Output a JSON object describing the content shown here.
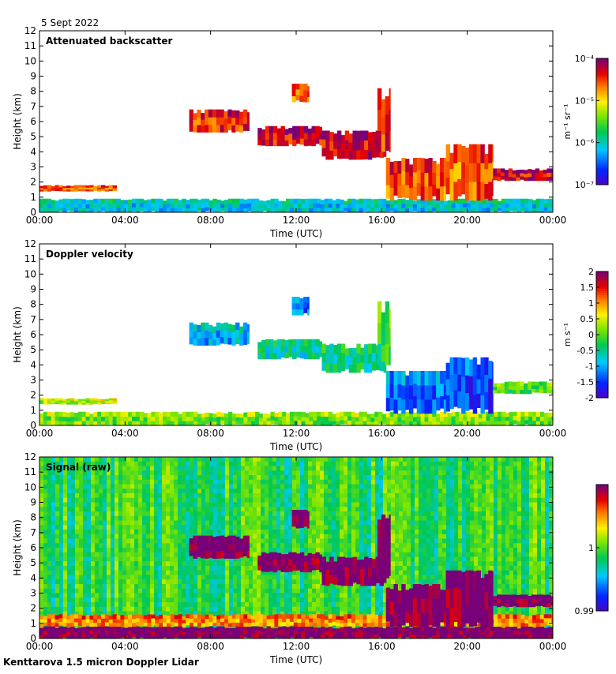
{
  "date_label": "5 Sept 2022",
  "footer_label": "Kenttarova 1.5 micron Doppler Lidar",
  "chart_data": [
    {
      "type": "heatmap",
      "title": "Attenuated backscatter",
      "xlabel": "Time (UTC)",
      "ylabel": "Height (km)",
      "xlim": [
        0,
        24
      ],
      "ylim": [
        0,
        12
      ],
      "x_tick_labels": [
        "00:00",
        "04:00",
        "08:00",
        "12:00",
        "16:00",
        "20:00",
        "00:00"
      ],
      "y_tick_labels": [
        "0",
        "1",
        "2",
        "3",
        "4",
        "5",
        "6",
        "7",
        "8",
        "9",
        "10",
        "11",
        "12"
      ],
      "colorbar": {
        "scale": "log",
        "range": [
          1e-07,
          0.0001
        ],
        "tick_labels": [
          "10⁻⁷",
          "10⁻⁶",
          "10⁻⁵",
          "10⁻⁴"
        ],
        "unit_label": "m⁻¹ sr⁻¹"
      },
      "features": [
        {
          "name": "boundary layer aerosol",
          "t_start": 0,
          "t_end": 24,
          "h_bottom": 0,
          "h_top": 0.9,
          "level": 0.3
        },
        {
          "name": "low cloud",
          "t_start": 0,
          "t_end": 3.6,
          "h_bottom": 1.4,
          "h_top": 1.8,
          "level": 0.8
        },
        {
          "name": "mid cloud",
          "t_start": 7.0,
          "t_end": 9.8,
          "h_bottom": 5.3,
          "h_top": 6.8,
          "level": 0.85
        },
        {
          "name": "mid cloud",
          "t_start": 10.2,
          "t_end": 13.2,
          "h_bottom": 4.4,
          "h_top": 5.7,
          "level": 0.9
        },
        {
          "name": "mid cloud",
          "t_start": 13.2,
          "t_end": 16.2,
          "h_bottom": 3.5,
          "h_top": 5.4,
          "level": 0.9
        },
        {
          "name": "high cloud",
          "t_start": 11.8,
          "t_end": 12.6,
          "h_bottom": 7.3,
          "h_top": 8.5,
          "level": 0.8
        },
        {
          "name": "cloud tower",
          "t_start": 15.8,
          "t_end": 16.4,
          "h_bottom": 4.0,
          "h_top": 8.2,
          "level": 0.85
        },
        {
          "name": "descending cloud",
          "t_start": 16.2,
          "t_end": 19.0,
          "h_bottom": 0.8,
          "h_top": 3.6,
          "level": 0.8
        },
        {
          "name": "cloud",
          "t_start": 19.0,
          "t_end": 21.2,
          "h_bottom": 0.8,
          "h_top": 4.5,
          "level": 0.8
        },
        {
          "name": "low cloud",
          "t_start": 21.2,
          "t_end": 24,
          "h_bottom": 2.1,
          "h_top": 2.9,
          "level": 0.9
        }
      ]
    },
    {
      "type": "heatmap",
      "title": "Doppler velocity",
      "xlabel": "Time (UTC)",
      "ylabel": "Height (km)",
      "xlim": [
        0,
        24
      ],
      "ylim": [
        0,
        12
      ],
      "x_tick_labels": [
        "00:00",
        "04:00",
        "08:00",
        "12:00",
        "16:00",
        "20:00",
        "00:00"
      ],
      "y_tick_labels": [
        "0",
        "1",
        "2",
        "3",
        "4",
        "5",
        "6",
        "7",
        "8",
        "9",
        "10",
        "11",
        "12"
      ],
      "colorbar": {
        "scale": "linear",
        "range": [
          -2,
          2
        ],
        "tick_labels": [
          "-2",
          "-1.5",
          "-1",
          "-0.5",
          "0",
          "0.5",
          "1",
          "1.5",
          "2"
        ],
        "unit_label": "m s⁻¹"
      },
      "features": [
        {
          "name": "boundary layer",
          "t_start": 0,
          "t_end": 24,
          "h_bottom": 0,
          "h_top": 0.9,
          "value": 0.1
        },
        {
          "name": "low cloud",
          "t_start": 0,
          "t_end": 3.6,
          "h_bottom": 1.4,
          "h_top": 1.8,
          "value": 0.3
        },
        {
          "name": "mid cloud",
          "t_start": 7.0,
          "t_end": 9.8,
          "h_bottom": 5.3,
          "h_top": 6.8,
          "value": -1.0
        },
        {
          "name": "mid cloud",
          "t_start": 10.2,
          "t_end": 13.2,
          "h_bottom": 4.4,
          "h_top": 5.7,
          "value": -0.6
        },
        {
          "name": "mid cloud",
          "t_start": 13.2,
          "t_end": 16.2,
          "h_bottom": 3.5,
          "h_top": 5.4,
          "value": -0.5
        },
        {
          "name": "high cloud",
          "t_start": 11.8,
          "t_end": 12.6,
          "h_bottom": 7.3,
          "h_top": 8.5,
          "value": -1.2
        },
        {
          "name": "cloud tower",
          "t_start": 15.8,
          "t_end": 16.4,
          "h_bottom": 4.0,
          "h_top": 8.2,
          "value": -0.3
        },
        {
          "name": "descending cloud",
          "t_start": 16.2,
          "t_end": 19.0,
          "h_bottom": 0.8,
          "h_top": 3.6,
          "value": -1.3
        },
        {
          "name": "cloud",
          "t_start": 19.0,
          "t_end": 21.2,
          "h_bottom": 0.8,
          "h_top": 4.5,
          "value": -1.5
        },
        {
          "name": "low cloud",
          "t_start": 21.2,
          "t_end": 24,
          "h_bottom": 2.1,
          "h_top": 2.9,
          "value": -0.1
        }
      ]
    },
    {
      "type": "heatmap",
      "title": "Signal (raw)",
      "xlabel": "Time (UTC)",
      "ylabel": "Height (km)",
      "xlim": [
        0,
        24
      ],
      "ylim": [
        0,
        12
      ],
      "x_tick_labels": [
        "00:00",
        "04:00",
        "08:00",
        "12:00",
        "16:00",
        "20:00",
        "00:00"
      ],
      "y_tick_labels": [
        "0",
        "1",
        "2",
        "3",
        "4",
        "5",
        "6",
        "7",
        "8",
        "9",
        "10",
        "11",
        "12"
      ],
      "colorbar": {
        "scale": "linear",
        "range": [
          0.99,
          1.01
        ],
        "tick_labels": [
          "0.99",
          "1"
        ],
        "tick_values": [
          0.99,
          1.0
        ]
      },
      "background_level": 0.45,
      "features": [
        {
          "name": "surface layer",
          "t_start": 0,
          "t_end": 24,
          "h_bottom": 0,
          "h_top": 0.8,
          "level": 1.0
        },
        {
          "name": "boundary layer",
          "t_start": 0,
          "t_end": 24,
          "h_bottom": 0.8,
          "h_top": 1.6,
          "level": 0.75
        },
        {
          "name": "mid cloud",
          "t_start": 7.0,
          "t_end": 9.8,
          "h_bottom": 5.3,
          "h_top": 6.8,
          "level": 1.0
        },
        {
          "name": "mid cloud",
          "t_start": 10.2,
          "t_end": 13.2,
          "h_bottom": 4.4,
          "h_top": 5.7,
          "level": 1.0
        },
        {
          "name": "mid cloud",
          "t_start": 13.2,
          "t_end": 16.2,
          "h_bottom": 3.5,
          "h_top": 5.4,
          "level": 1.0
        },
        {
          "name": "high cloud",
          "t_start": 11.8,
          "t_end": 12.6,
          "h_bottom": 7.3,
          "h_top": 8.5,
          "level": 1.0
        },
        {
          "name": "cloud tower",
          "t_start": 15.8,
          "t_end": 16.4,
          "h_bottom": 4.0,
          "h_top": 8.2,
          "level": 1.0
        },
        {
          "name": "descending cloud",
          "t_start": 16.2,
          "t_end": 19.0,
          "h_bottom": 0.8,
          "h_top": 3.6,
          "level": 1.0
        },
        {
          "name": "cloud",
          "t_start": 19.0,
          "t_end": 21.2,
          "h_bottom": 0.8,
          "h_top": 4.5,
          "level": 1.0
        },
        {
          "name": "low cloud",
          "t_start": 21.2,
          "t_end": 24,
          "h_bottom": 2.1,
          "h_top": 2.9,
          "level": 1.0
        }
      ]
    }
  ]
}
